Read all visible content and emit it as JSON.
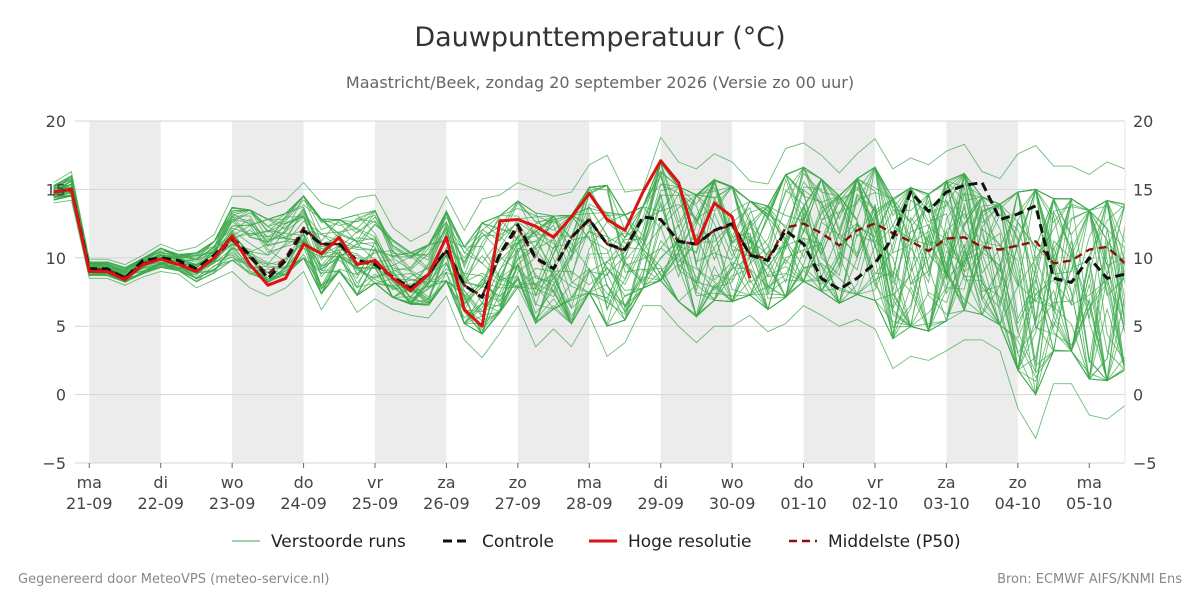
{
  "chart_data": {
    "type": "line",
    "title": "Dauwpunttemperatuur (°C)",
    "subtitle": "Maastricht/Beek, zondag 20 september 2026 (Versie zo 00 uur)",
    "ylim": [
      -5,
      20
    ],
    "yticks": [
      -5,
      0,
      5,
      10,
      15,
      20
    ],
    "grid": true,
    "legend_position": "bottom",
    "x_units": "days since 20-09-2026 00 uur",
    "xlim": [
      0.8,
      15.5
    ],
    "day_ticks": [
      {
        "day": "ma",
        "date": "21-09",
        "x": 1
      },
      {
        "day": "di",
        "date": "22-09",
        "x": 2
      },
      {
        "day": "wo",
        "date": "23-09",
        "x": 3
      },
      {
        "day": "do",
        "date": "24-09",
        "x": 4
      },
      {
        "day": "vr",
        "date": "25-09",
        "x": 5
      },
      {
        "day": "za",
        "date": "26-09",
        "x": 6
      },
      {
        "day": "zo",
        "date": "27-09",
        "x": 7
      },
      {
        "day": "ma",
        "date": "28-09",
        "x": 8
      },
      {
        "day": "di",
        "date": "29-09",
        "x": 9
      },
      {
        "day": "wo",
        "date": "30-09",
        "x": 10
      },
      {
        "day": "do",
        "date": "01-10",
        "x": 11
      },
      {
        "day": "vr",
        "date": "02-10",
        "x": 12
      },
      {
        "day": "za",
        "date": "03-10",
        "x": 13
      },
      {
        "day": "zo",
        "date": "04-10",
        "x": 14
      },
      {
        "day": "ma",
        "date": "05-10",
        "x": 15
      }
    ],
    "shaded_days": [
      [
        1,
        2
      ],
      [
        3,
        4
      ],
      [
        5,
        6
      ],
      [
        7,
        8
      ],
      [
        9,
        10
      ],
      [
        11,
        12
      ],
      [
        13,
        14
      ]
    ],
    "series": [
      {
        "name": "Hoge resolutie",
        "color": "#dd1111",
        "style": "solid",
        "step": 0.25,
        "x0": 0.5,
        "values": [
          14.8,
          15.0,
          9.0,
          9.0,
          8.4,
          9.5,
          9.9,
          9.5,
          9.0,
          10.0,
          11.6,
          9.5,
          8.0,
          8.5,
          11.0,
          10.3,
          11.5,
          9.5,
          9.8,
          8.5,
          7.6,
          8.8,
          11.5,
          6.2,
          5.0,
          12.7,
          12.8,
          12.3,
          11.5,
          13.0,
          14.7,
          12.8,
          12.0,
          14.8,
          17.1,
          15.5,
          11.0,
          14.0,
          13.0,
          8.5
        ]
      },
      {
        "name": "Controle",
        "color": "#111111",
        "style": "dashed",
        "step": 0.25,
        "x0": 0.5,
        "values": [
          14.8,
          15.0,
          9.2,
          9.2,
          8.5,
          9.8,
          10.0,
          9.8,
          9.2,
          10.2,
          11.5,
          10.2,
          8.5,
          9.8,
          12.0,
          11.0,
          11.0,
          9.8,
          9.5,
          8.6,
          7.8,
          8.8,
          10.6,
          8.0,
          7.1,
          10.3,
          12.4,
          10.0,
          9.2,
          11.5,
          12.8,
          11.0,
          10.6,
          13.0,
          12.8,
          11.2,
          11.0,
          12.0,
          12.5,
          10.2,
          9.8,
          12.0,
          11.0,
          8.5,
          7.7,
          8.5,
          9.6,
          11.5,
          14.8,
          13.4,
          14.8,
          15.3,
          15.5,
          12.8,
          13.2,
          13.8,
          8.5,
          8.2,
          10.0,
          8.5,
          8.8
        ]
      },
      {
        "name": "Middelste (P50)",
        "color": "#8b1010",
        "style": "dashed",
        "step": 0.25,
        "x0": 0.5,
        "values": [
          14.8,
          15.0,
          9.2,
          9.1,
          8.6,
          9.6,
          9.9,
          9.6,
          9.1,
          10.0,
          11.3,
          10.0,
          8.8,
          10.0,
          12.2,
          11.0,
          11.0,
          9.6,
          9.6,
          8.5,
          7.8,
          8.8,
          10.5,
          8.0,
          7.2,
          10.2,
          12.2,
          9.9,
          9.2,
          11.5,
          12.8,
          11.0,
          10.5,
          13.0,
          12.8,
          11.2,
          11.0,
          12.0,
          12.4,
          10.3,
          9.9,
          12.2,
          12.5,
          11.8,
          10.9,
          12.0,
          12.5,
          11.8,
          11.2,
          10.5,
          11.4,
          11.5,
          10.8,
          10.6,
          10.9,
          11.2,
          9.6,
          9.8,
          10.6,
          10.8,
          9.6
        ]
      }
    ],
    "ensemble": {
      "name": "Verstoorde runs",
      "color": "#3ca84b",
      "member_count": 50,
      "step": 0.25,
      "x0": 0.5,
      "envelope_low": [
        14.0,
        14.2,
        8.5,
        8.5,
        8.0,
        8.6,
        9.0,
        8.8,
        7.8,
        8.4,
        9.0,
        7.8,
        7.2,
        7.8,
        9.0,
        6.2,
        8.2,
        6.0,
        7.0,
        6.2,
        5.8,
        5.6,
        7.2,
        4.0,
        2.7,
        4.5,
        6.5,
        3.5,
        4.8,
        3.5,
        5.8,
        2.8,
        3.8,
        6.5,
        6.5,
        5.0,
        3.8,
        5.0,
        5.0,
        5.8,
        4.6,
        5.2,
        6.5,
        5.8,
        5.0,
        5.5,
        4.8,
        1.9,
        2.8,
        2.5,
        3.2,
        4.0,
        4.0,
        3.2,
        -1.0,
        -3.2,
        0.8,
        0.8,
        -1.5,
        -1.8,
        -0.8
      ],
      "envelope_high": [
        15.5,
        16.3,
        9.9,
        9.9,
        9.5,
        10.2,
        11.0,
        10.5,
        10.8,
        11.7,
        14.5,
        14.5,
        13.8,
        14.2,
        15.5,
        14.0,
        13.6,
        14.4,
        14.6,
        12.2,
        11.2,
        11.9,
        14.5,
        12.0,
        14.3,
        14.6,
        15.5,
        15.0,
        14.5,
        14.8,
        16.8,
        17.5,
        14.8,
        15.0,
        18.8,
        17.0,
        16.5,
        17.6,
        17.0,
        15.6,
        15.4,
        18.0,
        18.4,
        17.5,
        16.2,
        17.6,
        18.7,
        16.5,
        17.3,
        16.8,
        17.8,
        18.3,
        16.3,
        15.8,
        17.6,
        18.2,
        16.7,
        16.7,
        16.1,
        17.0,
        16.5
      ]
    },
    "legend": [
      "Verstoorde runs",
      "Controle",
      "Hoge resolutie",
      "Middelste (P50)"
    ]
  },
  "footer": {
    "left": "Gegenereerd door MeteoVPS (meteo-service.nl)",
    "right": "Bron: ECMWF AIFS/KNMI Ens"
  }
}
